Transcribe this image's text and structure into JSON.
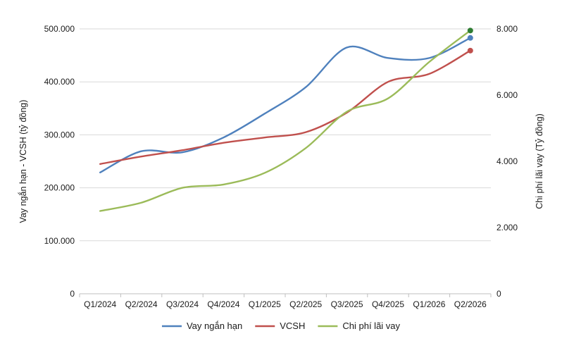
{
  "chart_data": {
    "type": "line",
    "title": "",
    "categories": [
      "Q1/2024",
      "Q2/2024",
      "Q3/2024",
      "Q4/2024",
      "Q1/2025",
      "Q2/2025",
      "Q3/2025",
      "Q4/2025",
      "Q1/2026",
      "Q2/2026"
    ],
    "left_axis": {
      "label": "Vay ngắn hạn - VCSH (tỷ đồng)",
      "ylim": [
        0,
        500000
      ],
      "ticks": [
        0,
        100000,
        200000,
        300000,
        400000,
        500000
      ],
      "tick_labels": [
        "0",
        "100.000",
        "200.000",
        "300.000",
        "400.000",
        "500.000"
      ]
    },
    "right_axis": {
      "label": "Chi phí lãi vay (Tỷ đồng)",
      "ylim": [
        0,
        8000
      ],
      "ticks": [
        0,
        2000,
        4000,
        6000,
        8000
      ],
      "tick_labels": [
        "0",
        "2.000",
        "4.000",
        "6.000",
        "8.000"
      ]
    },
    "grid": true,
    "legend_position": "bottom",
    "series": [
      {
        "name": "Vay ngắn hạn",
        "axis": "left",
        "color": "#4f81bd",
        "values": [
          229000,
          269000,
          267000,
          295000,
          340000,
          390000,
          465000,
          445000,
          445000,
          483000
        ]
      },
      {
        "name": "VCSH",
        "axis": "left",
        "color": "#c0504d",
        "values": [
          245000,
          259000,
          271000,
          285000,
          295000,
          305000,
          342000,
          400000,
          415000,
          459000
        ]
      },
      {
        "name": "Chi phí lãi vay",
        "axis": "right",
        "color": "#9bbb59",
        "values": [
          2500,
          2750,
          3200,
          3300,
          3650,
          4400,
          5500,
          5900,
          7000,
          7950
        ]
      }
    ]
  }
}
